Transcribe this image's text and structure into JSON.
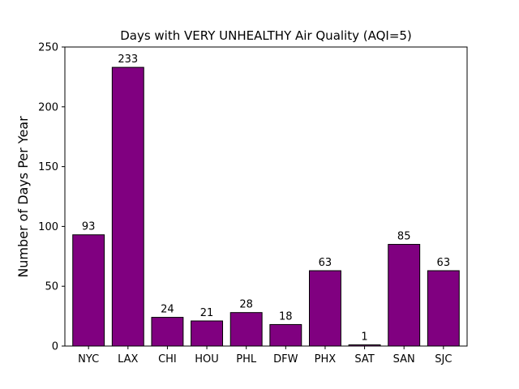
{
  "chart_data": {
    "type": "bar",
    "title": "Days with VERY UNHEALTHY Air Quality (AQI=5)",
    "xlabel": "",
    "ylabel": "Number of Days Per Year",
    "categories": [
      "NYC",
      "LAX",
      "CHI",
      "HOU",
      "PHL",
      "DFW",
      "PHX",
      "SAT",
      "SAN",
      "SJC"
    ],
    "values": [
      93,
      233,
      24,
      21,
      28,
      18,
      63,
      1,
      85,
      63
    ],
    "data_labels": [
      "93",
      "233",
      "24",
      "21",
      "28",
      "18",
      "63",
      "1",
      "85",
      "63"
    ],
    "ylim": [
      0,
      250
    ],
    "yticks": [
      0,
      50,
      100,
      150,
      200,
      250
    ],
    "ytick_labels": [
      "0",
      "50",
      "100",
      "150",
      "200",
      "250"
    ],
    "grid": false,
    "legend": "none",
    "bar_color": "#800080",
    "edge_color": "#000000"
  }
}
